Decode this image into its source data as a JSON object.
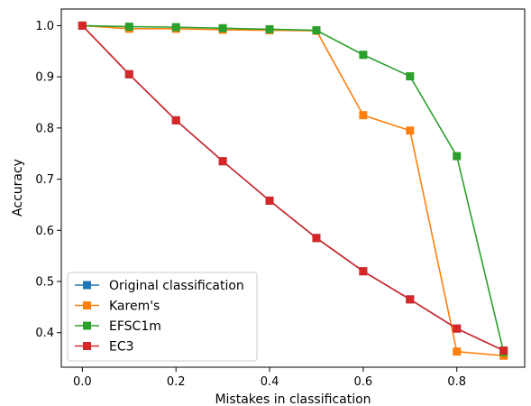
{
  "chart_data": {
    "type": "line",
    "title": "",
    "xlabel": "Mistakes in classification",
    "ylabel": "Accuracy",
    "xlim": [
      -0.045,
      0.945
    ],
    "ylim": [
      0.3325,
      1.0325
    ],
    "xticks": [
      "0.0",
      "0.2",
      "0.4",
      "0.6",
      "0.8"
    ],
    "yticks": [
      "0.4",
      "0.5",
      "0.6",
      "0.7",
      "0.8",
      "0.9",
      "1.0"
    ],
    "grid": false,
    "legend_position": "lower-left",
    "x": [
      0.0,
      0.1,
      0.2,
      0.3,
      0.4,
      0.5,
      0.6,
      0.7,
      0.8,
      0.9
    ],
    "series": [
      {
        "name": "Original classification",
        "color": "#1f77b4",
        "marker": "square",
        "values": [
          1.0,
          0.905,
          0.815,
          0.735,
          0.658,
          0.585,
          0.52,
          0.465,
          0.408,
          0.365
        ]
      },
      {
        "name": "Karem's",
        "color": "#ff7f0e",
        "marker": "square",
        "values": [
          1.0,
          0.994,
          0.994,
          0.992,
          0.991,
          0.99,
          0.825,
          0.795,
          0.363,
          0.355
        ]
      },
      {
        "name": "EFSC1m",
        "color": "#2ca02c",
        "marker": "square",
        "values": [
          1.0,
          0.998,
          0.997,
          0.995,
          0.993,
          0.991,
          0.943,
          0.901,
          0.745,
          0.362
        ]
      },
      {
        "name": "EC3",
        "color": "#d62728",
        "marker": "square",
        "values": [
          1.0,
          0.905,
          0.815,
          0.735,
          0.658,
          0.585,
          0.52,
          0.465,
          0.408,
          0.365
        ]
      }
    ]
  }
}
